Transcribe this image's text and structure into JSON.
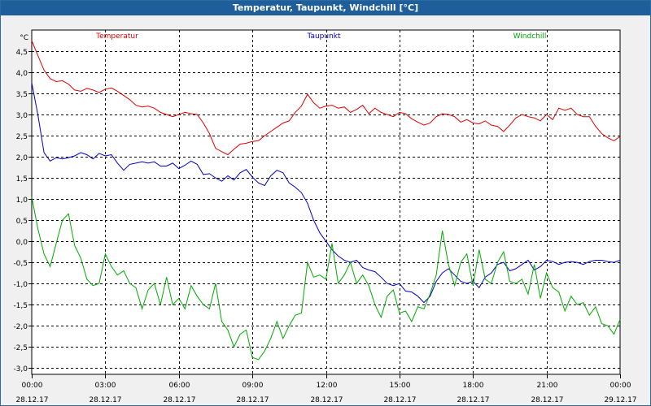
{
  "window": {
    "title": "Temperatur, Taupunkt, Windchill [°C]"
  },
  "chart_data": {
    "type": "line",
    "title": "Temperatur, Taupunkt, Windchill [°C]",
    "ylabel": "°C",
    "xlabel": "",
    "ylim": [
      -3.15,
      5.0
    ],
    "xlim": [
      0,
      24
    ],
    "grid": true,
    "yticks": [
      4.5,
      4.0,
      3.5,
      3.0,
      2.5,
      2.0,
      1.5,
      1.0,
      0.5,
      0.0,
      -0.5,
      -1.0,
      -1.5,
      -2.0,
      -2.5,
      -3.0
    ],
    "ytick_labels": [
      "4,5",
      "4,0",
      "3,5",
      "3,0",
      "2,5",
      "2,0",
      "1,5",
      "1,0",
      "0,5",
      "0,0",
      "-0,5",
      "-1,0",
      "-1,5",
      "-2,0",
      "-2,5",
      "-3,0"
    ],
    "xticks": [
      {
        "x": 0,
        "time": "00:00",
        "date": "28.12.17"
      },
      {
        "x": 3,
        "time": "03:00",
        "date": "28.12.17"
      },
      {
        "x": 6,
        "time": "06:00",
        "date": "28.12.17"
      },
      {
        "x": 9,
        "time": "09:00",
        "date": "28.12.17"
      },
      {
        "x": 12,
        "time": "12:00",
        "date": "28.12.17"
      },
      {
        "x": 15,
        "time": "15:00",
        "date": "28.12.17"
      },
      {
        "x": 18,
        "time": "18:00",
        "date": "28.12.17"
      },
      {
        "x": 21,
        "time": "21:00",
        "date": "28.12.17"
      },
      {
        "x": 24,
        "time": "00:00",
        "date": "29.12.17"
      }
    ],
    "series": [
      {
        "name": "Temperatur",
        "color": "#dd0000",
        "x": [
          0,
          0.25,
          0.5,
          0.75,
          1,
          1.25,
          1.5,
          1.75,
          2,
          2.25,
          2.5,
          2.75,
          3,
          3.25,
          3.5,
          3.75,
          4,
          4.25,
          4.5,
          4.75,
          5,
          5.25,
          5.5,
          5.75,
          6,
          6.25,
          6.5,
          6.75,
          7,
          7.25,
          7.5,
          7.75,
          8,
          8.25,
          8.5,
          8.75,
          9,
          9.25,
          9.5,
          9.75,
          10,
          10.25,
          10.5,
          10.75,
          11,
          11.25,
          11.5,
          11.75,
          12,
          12.25,
          12.5,
          12.75,
          13,
          13.25,
          13.5,
          13.75,
          14,
          14.25,
          14.5,
          14.75,
          15,
          15.25,
          15.5,
          15.75,
          16,
          16.25,
          16.5,
          16.75,
          17,
          17.25,
          17.5,
          17.75,
          18,
          18.25,
          18.5,
          18.75,
          19,
          19.25,
          19.5,
          19.75,
          20,
          20.25,
          20.5,
          20.75,
          21,
          21.25,
          21.5,
          21.75,
          22,
          22.25,
          22.5,
          22.75,
          23,
          23.25,
          23.5,
          23.75,
          24
        ],
        "values": [
          4.75,
          4.4,
          4.05,
          3.85,
          3.78,
          3.8,
          3.72,
          3.58,
          3.55,
          3.62,
          3.58,
          3.52,
          3.6,
          3.63,
          3.55,
          3.45,
          3.35,
          3.22,
          3.18,
          3.2,
          3.15,
          3.05,
          3.0,
          2.95,
          3.0,
          3.05,
          3.02,
          3.0,
          2.8,
          2.55,
          2.2,
          2.12,
          2.05,
          2.18,
          2.3,
          2.32,
          2.36,
          2.38,
          2.5,
          2.6,
          2.7,
          2.8,
          2.85,
          3.05,
          3.2,
          3.48,
          3.28,
          3.15,
          3.2,
          3.22,
          3.15,
          3.18,
          3.05,
          3.12,
          3.22,
          3.02,
          3.15,
          3.05,
          3.0,
          2.95,
          3.05,
          3.02,
          2.9,
          2.82,
          2.75,
          2.8,
          2.95,
          3.02,
          3.0,
          2.95,
          2.82,
          2.88,
          2.8,
          2.78,
          2.85,
          2.75,
          2.72,
          2.6,
          2.75,
          2.92,
          3.0,
          2.95,
          2.92,
          2.85,
          3.0,
          2.88,
          3.15,
          3.1,
          3.15,
          3.0,
          2.95,
          2.95,
          2.72,
          2.55,
          2.45,
          2.38,
          2.48
        ]
      },
      {
        "name": "Taupunkt",
        "color": "#0000c0",
        "x": [
          0,
          0.25,
          0.5,
          0.75,
          1,
          1.25,
          1.5,
          1.75,
          2,
          2.25,
          2.5,
          2.75,
          3,
          3.25,
          3.5,
          3.75,
          4,
          4.25,
          4.5,
          4.75,
          5,
          5.25,
          5.5,
          5.75,
          6,
          6.25,
          6.5,
          6.75,
          7,
          7.25,
          7.5,
          7.75,
          8,
          8.25,
          8.5,
          8.75,
          9,
          9.25,
          9.5,
          9.75,
          10,
          10.25,
          10.5,
          10.75,
          11,
          11.25,
          11.5,
          11.75,
          12,
          12.25,
          12.5,
          12.75,
          13,
          13.25,
          13.5,
          13.75,
          14,
          14.25,
          14.5,
          14.75,
          15,
          15.25,
          15.5,
          15.75,
          16,
          16.25,
          16.5,
          16.75,
          17,
          17.25,
          17.5,
          17.75,
          18,
          18.25,
          18.5,
          18.75,
          19,
          19.25,
          19.5,
          19.75,
          20,
          20.25,
          20.5,
          20.75,
          21,
          21.25,
          21.5,
          21.75,
          22,
          22.25,
          22.5,
          22.75,
          23,
          23.25,
          23.5,
          23.75,
          24
        ],
        "values": [
          3.75,
          3.0,
          2.1,
          1.9,
          1.98,
          1.95,
          1.98,
          2.02,
          2.1,
          2.05,
          1.95,
          2.08,
          2.02,
          2.05,
          1.85,
          1.68,
          1.82,
          1.85,
          1.88,
          1.85,
          1.88,
          1.78,
          1.78,
          1.85,
          1.72,
          1.8,
          1.9,
          1.82,
          1.58,
          1.6,
          1.5,
          1.42,
          1.55,
          1.45,
          1.62,
          1.7,
          1.52,
          1.38,
          1.32,
          1.55,
          1.68,
          1.62,
          1.38,
          1.28,
          1.15,
          0.9,
          0.5,
          0.2,
          0.0,
          -0.2,
          -0.35,
          -0.45,
          -0.5,
          -0.45,
          -0.62,
          -0.68,
          -0.72,
          -0.85,
          -1.0,
          -1.05,
          -1.0,
          -1.18,
          -1.2,
          -1.3,
          -1.45,
          -1.3,
          -0.95,
          -0.75,
          -0.65,
          -0.8,
          -0.95,
          -1.0,
          -0.95,
          -1.1,
          -0.85,
          -0.75,
          -0.55,
          -0.5,
          -0.7,
          -0.65,
          -0.55,
          -0.45,
          -0.68,
          -0.6,
          -0.45,
          -0.48,
          -0.55,
          -0.5,
          -0.48,
          -0.5,
          -0.55,
          -0.48,
          -0.45,
          -0.45,
          -0.48,
          -0.5,
          -0.45
        ]
      },
      {
        "name": "Windchill",
        "color": "#00aa00",
        "x": [
          0,
          0.25,
          0.5,
          0.75,
          1,
          1.25,
          1.5,
          1.75,
          2,
          2.25,
          2.5,
          2.75,
          3,
          3.25,
          3.5,
          3.75,
          4,
          4.25,
          4.5,
          4.75,
          5,
          5.25,
          5.5,
          5.75,
          6,
          6.25,
          6.5,
          6.75,
          7,
          7.25,
          7.5,
          7.75,
          8,
          8.25,
          8.5,
          8.75,
          9,
          9.25,
          9.5,
          9.75,
          10,
          10.25,
          10.5,
          10.75,
          11,
          11.25,
          11.5,
          11.75,
          12,
          12.25,
          12.5,
          12.75,
          13,
          13.25,
          13.5,
          13.75,
          14,
          14.25,
          14.5,
          14.75,
          15,
          15.25,
          15.5,
          15.75,
          16,
          16.25,
          16.5,
          16.75,
          17,
          17.25,
          17.5,
          17.75,
          18,
          18.25,
          18.5,
          18.75,
          19,
          19.25,
          19.5,
          19.75,
          20,
          20.25,
          20.5,
          20.75,
          21,
          21.25,
          21.5,
          21.75,
          22,
          22.25,
          22.5,
          22.75,
          23,
          23.25,
          23.5,
          23.75,
          24
        ],
        "values": [
          1.05,
          0.3,
          -0.3,
          -0.6,
          -0.05,
          0.5,
          0.65,
          -0.1,
          -0.4,
          -0.9,
          -1.05,
          -1.0,
          -0.3,
          -0.6,
          -0.8,
          -0.7,
          -1.0,
          -1.1,
          -1.6,
          -1.15,
          -1.0,
          -1.5,
          -0.85,
          -1.5,
          -1.35,
          -1.6,
          -1.05,
          -1.3,
          -1.5,
          -1.6,
          -1.0,
          -1.9,
          -2.1,
          -2.5,
          -2.2,
          -2.1,
          -2.75,
          -2.8,
          -2.6,
          -2.3,
          -1.9,
          -2.3,
          -2.0,
          -1.75,
          -1.7,
          -0.5,
          -0.85,
          -0.8,
          -0.9,
          -0.05,
          -1.0,
          -0.8,
          -0.5,
          -1.0,
          -0.8,
          -1.05,
          -1.5,
          -1.8,
          -1.3,
          -1.15,
          -1.7,
          -1.65,
          -1.9,
          -1.55,
          -1.6,
          -1.25,
          -0.8,
          0.25,
          -0.55,
          -1.05,
          -0.5,
          -0.3,
          -1.05,
          -0.2,
          -0.9,
          -1.0,
          -0.5,
          -0.25,
          -0.95,
          -1.0,
          -0.9,
          -1.25,
          -0.55,
          -1.35,
          -0.75,
          -1.1,
          -1.2,
          -1.65,
          -1.3,
          -1.5,
          -1.45,
          -1.75,
          -1.55,
          -1.95,
          -2.0,
          -2.2,
          -1.85
        ]
      }
    ]
  }
}
